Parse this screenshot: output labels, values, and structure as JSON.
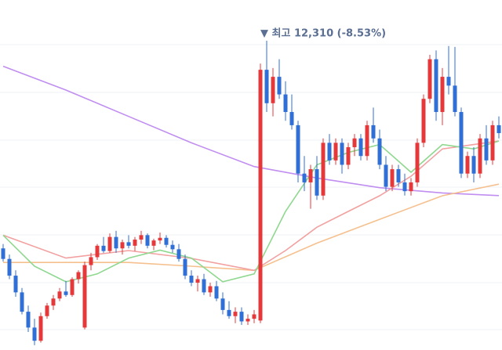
{
  "chart_data": {
    "type": "candlestick",
    "annotation": "▼ 최고 12,310 (-8.53%)",
    "annotation_index": 42,
    "ylim": [
      8795,
      12773
    ],
    "up_color": "#e5383b",
    "down_color": "#2f6fd6",
    "grid": true,
    "candles": [
      [
        9950,
        10000,
        9800,
        9830
      ],
      [
        9830,
        9880,
        9600,
        9640
      ],
      [
        9640,
        9700,
        9400,
        9450
      ],
      [
        9450,
        9500,
        9200,
        9230
      ],
      [
        9230,
        9300,
        9000,
        9050
      ],
      [
        9050,
        9150,
        8850,
        8900
      ],
      [
        8900,
        9220,
        8880,
        9180
      ],
      [
        9180,
        9330,
        9150,
        9300
      ],
      [
        9300,
        9420,
        9250,
        9380
      ],
      [
        9380,
        9500,
        9350,
        9460
      ],
      [
        9460,
        9580,
        9400,
        9420
      ],
      [
        9420,
        9620,
        9400,
        9600
      ],
      [
        9600,
        9700,
        9550,
        9680
      ],
      [
        9050,
        9800,
        9030,
        9760
      ],
      [
        9760,
        9900,
        9700,
        9850
      ],
      [
        9850,
        10000,
        9820,
        9980
      ],
      [
        9980,
        10080,
        9900,
        9920
      ],
      [
        9920,
        10120,
        9900,
        10080
      ],
      [
        10080,
        10150,
        9900,
        9950
      ],
      [
        9950,
        10050,
        9880,
        10020
      ],
      [
        10020,
        10100,
        9950,
        9980
      ],
      [
        9980,
        10080,
        9920,
        10050
      ],
      [
        10050,
        10150,
        10000,
        10100
      ],
      [
        10100,
        10120,
        9950,
        9980
      ],
      [
        9980,
        10060,
        9930,
        10040
      ],
      [
        10040,
        10130,
        10000,
        10070
      ],
      [
        10070,
        10100,
        9960,
        9990
      ],
      [
        9990,
        10040,
        9900,
        9940
      ],
      [
        9940,
        10000,
        9800,
        9830
      ],
      [
        9830,
        9880,
        9600,
        9640
      ],
      [
        9640,
        9700,
        9520,
        9560
      ],
      [
        9560,
        9640,
        9460,
        9600
      ],
      [
        9600,
        9660,
        9420,
        9450
      ],
      [
        9450,
        9560,
        9400,
        9520
      ],
      [
        9520,
        9580,
        9350,
        9380
      ],
      [
        9380,
        9450,
        9200,
        9250
      ],
      [
        9250,
        9350,
        9150,
        9180
      ],
      [
        9180,
        9280,
        9100,
        9230
      ],
      [
        9230,
        9280,
        9080,
        9120
      ],
      [
        9120,
        9200,
        9080,
        9150
      ],
      [
        9150,
        9250,
        9100,
        9200
      ],
      [
        9130,
        12050,
        9100,
        11980
      ],
      [
        11980,
        12310,
        11500,
        11600
      ],
      [
        11600,
        12000,
        11450,
        11900
      ],
      [
        11900,
        12100,
        11650,
        11700
      ],
      [
        11700,
        11850,
        11400,
        11500
      ],
      [
        11500,
        11700,
        11300,
        11350
      ],
      [
        11350,
        11400,
        10700,
        10800
      ],
      [
        10800,
        11000,
        10600,
        10700
      ],
      [
        10700,
        10900,
        10400,
        10850
      ],
      [
        10850,
        11000,
        10500,
        10550
      ],
      [
        10550,
        11200,
        10500,
        11150
      ],
      [
        11150,
        11250,
        10900,
        10950
      ],
      [
        10950,
        11200,
        10900,
        11150
      ],
      [
        11150,
        11200,
        10800,
        10900
      ],
      [
        10900,
        11150,
        10850,
        11100
      ],
      [
        11100,
        11250,
        11000,
        11200
      ],
      [
        11200,
        11250,
        10950,
        11000
      ],
      [
        11000,
        11400,
        10950,
        11350
      ],
      [
        11350,
        11550,
        11150,
        11200
      ],
      [
        11200,
        11300,
        10850,
        10900
      ],
      [
        10900,
        11000,
        10600,
        10650
      ],
      [
        10650,
        10900,
        10600,
        10850
      ],
      [
        10850,
        10900,
        10650,
        10700
      ],
      [
        10700,
        10800,
        10550,
        10600
      ],
      [
        10600,
        10750,
        10550,
        10700
      ],
      [
        10700,
        11200,
        10650,
        11150
      ],
      [
        11150,
        11700,
        11100,
        11650
      ],
      [
        11650,
        12150,
        11600,
        12100
      ],
      [
        12100,
        12200,
        11400,
        11500
      ],
      [
        11500,
        12000,
        11350,
        11900
      ],
      [
        11900,
        12250,
        11700,
        11800
      ],
      [
        11800,
        12240,
        11450,
        11500
      ],
      [
        11500,
        11550,
        10750,
        10800
      ],
      [
        10800,
        11050,
        10750,
        11000
      ],
      [
        11000,
        11100,
        10700,
        10800
      ],
      [
        10800,
        11250,
        10750,
        11200
      ],
      [
        11200,
        11350,
        10900,
        10950
      ],
      [
        10950,
        11400,
        10900,
        11350
      ],
      [
        11350,
        11450,
        11200,
        11260
      ]
    ],
    "lines": [
      {
        "color": "#c08ef0",
        "x": [
          0,
          10,
          20,
          30,
          40,
          50,
          60,
          70,
          79
        ],
        "values": [
          12020,
          11750,
          11450,
          11150,
          10880,
          10750,
          10640,
          10580,
          10550
        ]
      },
      {
        "color": "#f5c08e",
        "x": [
          0,
          10,
          20,
          30,
          40,
          50,
          60,
          70,
          79
        ],
        "values": [
          9790,
          9790,
          9790,
          9747,
          9700,
          10010,
          10280,
          10548,
          10680
        ]
      },
      {
        "color": "#f2a0a0",
        "x": [
          0,
          10,
          20,
          30,
          40,
          45,
          50,
          55,
          60,
          65,
          70,
          75,
          79
        ],
        "values": [
          10100,
          9840,
          9925,
          9836,
          9700,
          9925,
          10190,
          10370,
          10548,
          10770,
          11080,
          11130,
          11170
        ]
      },
      {
        "color": "#8fd88f",
        "x": [
          0,
          5,
          10,
          15,
          20,
          25,
          30,
          35,
          40,
          45,
          50,
          55,
          60,
          65,
          70,
          75,
          79
        ],
        "values": [
          10100,
          9747,
          9570,
          9660,
          9840,
          9930,
          9840,
          9570,
          9660,
          10370,
          10900,
          11040,
          11130,
          10815,
          11130,
          11080,
          11170
        ]
      }
    ]
  }
}
